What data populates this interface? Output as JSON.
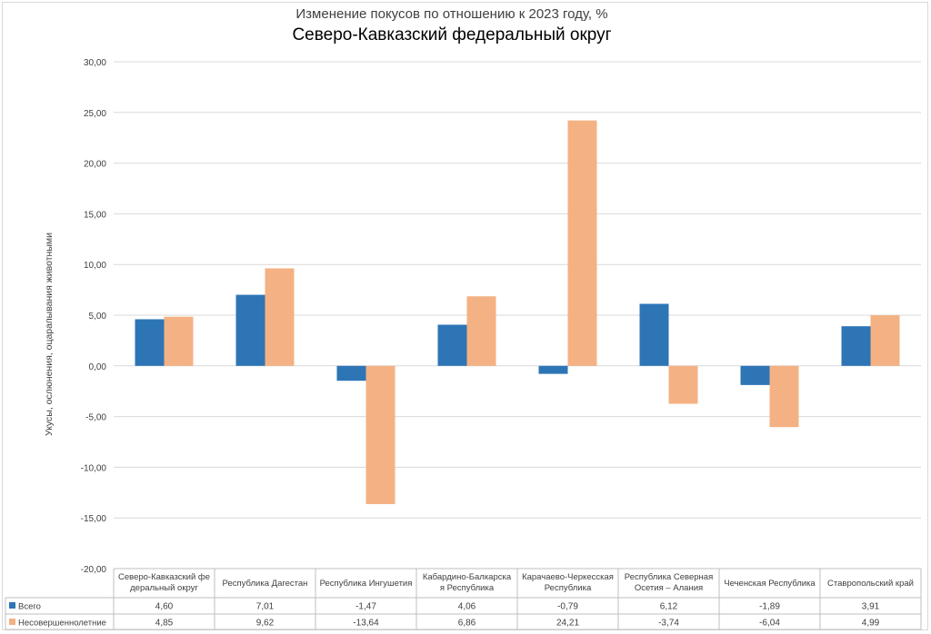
{
  "chart_data": {
    "type": "bar",
    "title": "Изменение покусов по отношению к 2023 году, %",
    "subtitle": "Северо-Кавказский федеральный округ",
    "ylabel": "Укусы, ослюнения, оцарапывания животными",
    "xlabel": "",
    "ylim": [
      -20,
      30
    ],
    "y_ticks": [
      "30,00",
      "25,00",
      "20,00",
      "15,00",
      "10,00",
      "5,00",
      "0,00",
      "-5,00",
      "-10,00",
      "-15,00",
      "-20,00"
    ],
    "y_tick_values": [
      30,
      25,
      20,
      15,
      10,
      5,
      0,
      -5,
      -10,
      -15,
      -20
    ],
    "grid": true,
    "legend": "bottom-table",
    "categories": [
      [
        "Северо-Кавказский фе",
        "деральный округ"
      ],
      [
        "Республика Дагестан"
      ],
      [
        "Республика Ингушетия"
      ],
      [
        "Кабардино-Балкарска",
        "я Республика"
      ],
      [
        "Карачаево-Черкесская",
        "Республика"
      ],
      [
        "Республика Северная",
        "Осетия – Алания"
      ],
      [
        "Чеченская Республика"
      ],
      [
        "Ставропольский край"
      ]
    ],
    "series": [
      {
        "name": "Всего",
        "color": "#2e75b6",
        "values": [
          4.6,
          7.01,
          -1.47,
          4.06,
          -0.79,
          6.12,
          -1.89,
          3.91
        ],
        "labels": [
          "4,60",
          "7,01",
          "-1,47",
          "4,06",
          "-0,79",
          "6,12",
          "-1,89",
          "3,91"
        ]
      },
      {
        "name": "Несовершеннолетние",
        "color": "#f4b183",
        "values": [
          4.85,
          9.62,
          -13.64,
          6.86,
          24.21,
          -3.74,
          -6.04,
          4.99
        ],
        "labels": [
          "4,85",
          "9,62",
          "-13,64",
          "6,86",
          "24,21",
          "-3,74",
          "-6,04",
          "4,99"
        ]
      }
    ]
  }
}
